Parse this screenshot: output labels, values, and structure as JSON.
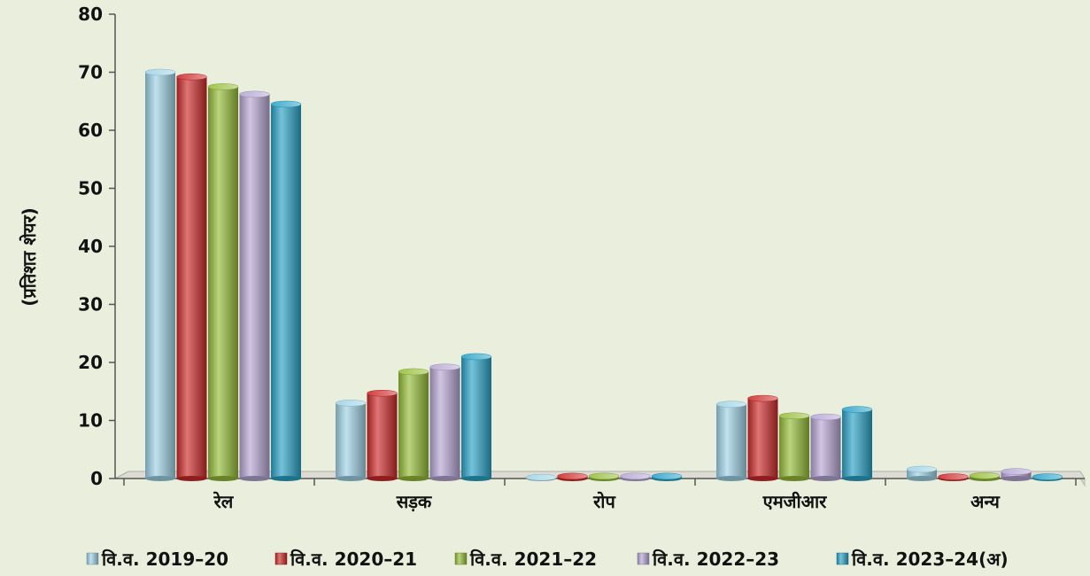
{
  "chart_data": {
    "type": "bar",
    "title": "",
    "xlabel": "",
    "ylabel": "(प्रतिशत शेयर)",
    "ylim": [
      0,
      80
    ],
    "yticks": [
      "0",
      "10",
      "20",
      "30",
      "40",
      "50",
      "60",
      "70",
      "80"
    ],
    "categories": [
      "रेल",
      "सड़क",
      "रोप",
      "एमजीआर",
      "अन्य"
    ],
    "series": [
      {
        "name": "वि.व. 2019–20",
        "color": "#9ed3e6",
        "values": [
          70.0,
          13.0,
          0.2,
          12.8,
          1.6
        ]
      },
      {
        "name": "वि.व. 2020–21",
        "color": "#cc2a2a",
        "values": [
          69.2,
          14.7,
          0.4,
          13.8,
          0.3
        ]
      },
      {
        "name": "वि.व. 2021–22",
        "color": "#95bd38",
        "values": [
          67.5,
          18.4,
          0.4,
          10.8,
          0.5
        ]
      },
      {
        "name": "वि.व. 2022–23",
        "color": "#b6a6d4",
        "values": [
          66.2,
          19.2,
          0.4,
          10.6,
          1.2
        ]
      },
      {
        "name": "वि.व. 2023–24(अ)",
        "color": "#2aa3c8",
        "values": [
          64.5,
          21.0,
          0.4,
          11.9,
          0.3
        ]
      }
    ],
    "legend_position": "bottom",
    "grid": false
  }
}
